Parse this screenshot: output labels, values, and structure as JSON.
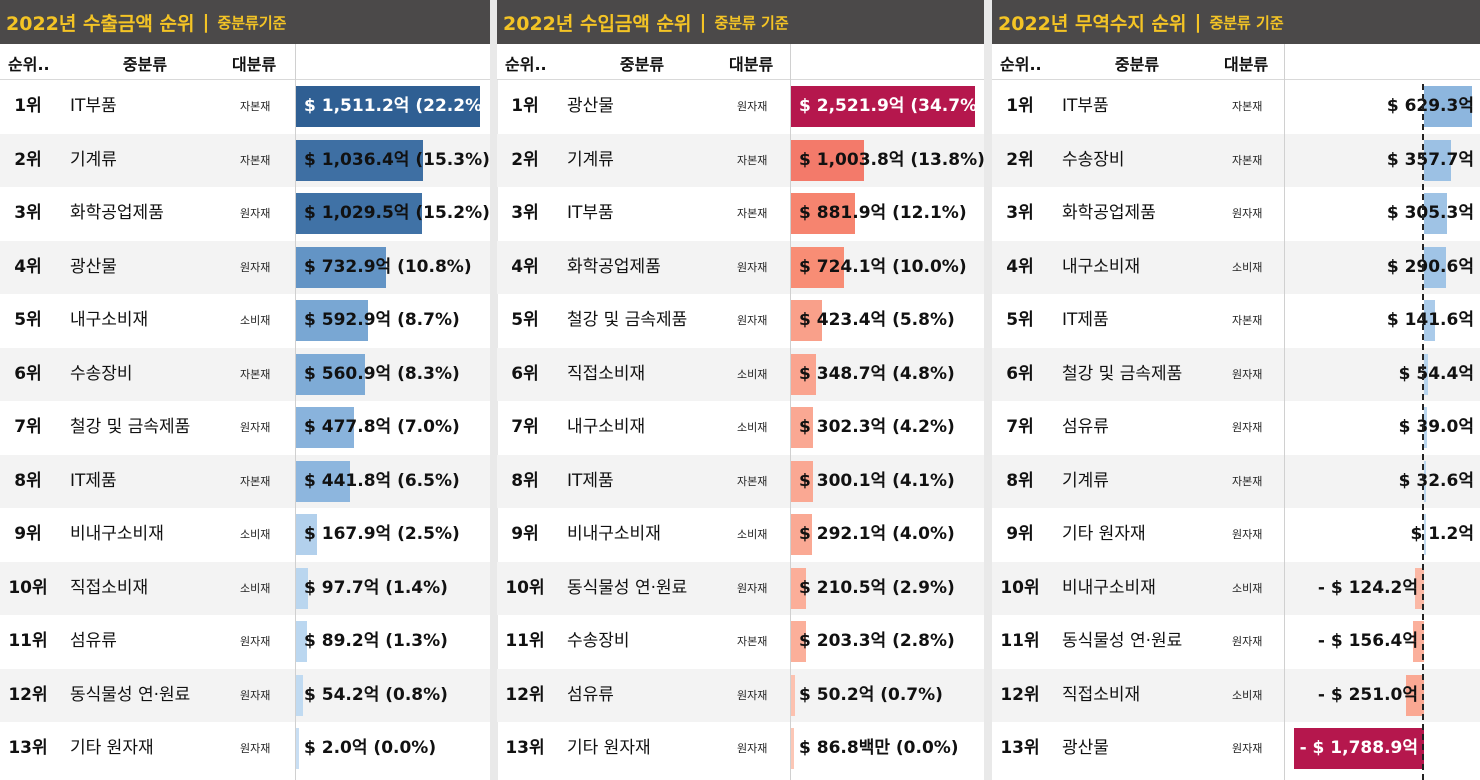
{
  "panels": [
    {
      "title": "2022년 수출금액 순위",
      "separator": "|",
      "subtitle": "중분류기준",
      "headers": {
        "rank": "순위..",
        "mid": "중분류",
        "big": "대분류"
      },
      "rows": [
        {
          "rank": "1위",
          "mid": "IT부품",
          "big": "자본재",
          "value": "$ 1,511.2억 (22.2%)",
          "share": 22.2,
          "color": "#2f5f93"
        },
        {
          "rank": "2위",
          "mid": "기계류",
          "big": "자본재",
          "value": "$ 1,036.4억 (15.3%)",
          "share": 15.3,
          "color": "#3e6fa3"
        },
        {
          "rank": "3위",
          "mid": "화학공업제품",
          "big": "원자재",
          "value": "$ 1,029.5억 (15.2%)",
          "share": 15.2,
          "color": "#4072a6"
        },
        {
          "rank": "4위",
          "mid": "광산물",
          "big": "원자재",
          "value": "$ 732.9억 (10.8%)",
          "share": 10.8,
          "color": "#6394c5"
        },
        {
          "rank": "5위",
          "mid": "내구소비재",
          "big": "소비재",
          "value": "$ 592.9억 (8.7%)",
          "share": 8.7,
          "color": "#79a7d3"
        },
        {
          "rank": "6위",
          "mid": "수송장비",
          "big": "자본재",
          "value": "$ 560.9억 (8.3%)",
          "share": 8.3,
          "color": "#7eabd6"
        },
        {
          "rank": "7위",
          "mid": "철강 및 금속제품",
          "big": "원자재",
          "value": "$ 477.8억 (7.0%)",
          "share": 7.0,
          "color": "#89b3dc"
        },
        {
          "rank": "8위",
          "mid": "IT제품",
          "big": "자본재",
          "value": "$ 441.8억 (6.5%)",
          "share": 6.5,
          "color": "#8db6de"
        },
        {
          "rank": "9위",
          "mid": "비내구소비재",
          "big": "소비재",
          "value": "$ 167.9억 (2.5%)",
          "share": 2.5,
          "color": "#b2d0ec"
        },
        {
          "rank": "10위",
          "mid": "직접소비재",
          "big": "소비재",
          "value": "$ 97.7억 (1.4%)",
          "share": 1.4,
          "color": "#bad6ef"
        },
        {
          "rank": "11위",
          "mid": "섬유류",
          "big": "원자재",
          "value": "$ 89.2억 (1.3%)",
          "share": 1.3,
          "color": "#bbd7f0"
        },
        {
          "rank": "12위",
          "mid": "동식물성 연·원료",
          "big": "원자재",
          "value": "$ 54.2억 (0.8%)",
          "share": 0.8,
          "color": "#c0daf1"
        },
        {
          "rank": "13위",
          "mid": "기타 원자재",
          "big": "원자재",
          "value": "$ 2.0억 (0.0%)",
          "share": 0.0,
          "color": "#c8def3"
        }
      ]
    },
    {
      "title": "2022년 수입금액 순위",
      "separator": "|",
      "subtitle": "중분류 기준",
      "headers": {
        "rank": "순위..",
        "mid": "중분류",
        "big": "대분류"
      },
      "rows": [
        {
          "rank": "1위",
          "mid": "광산물",
          "big": "원자재",
          "value": "$ 2,521.9억 (34.7%)",
          "share": 34.7,
          "color": "#b5174d"
        },
        {
          "rank": "2위",
          "mid": "기계류",
          "big": "자본재",
          "value": "$ 1,003.8억 (13.8%)",
          "share": 13.8,
          "color": "#f37a6a"
        },
        {
          "rank": "3위",
          "mid": "IT부품",
          "big": "자본재",
          "value": "$ 881.9억 (12.1%)",
          "share": 12.1,
          "color": "#f6846f"
        },
        {
          "rank": "4위",
          "mid": "화학공업제품",
          "big": "원자재",
          "value": "$ 724.1억 (10.0%)",
          "share": 10.0,
          "color": "#f88d75"
        },
        {
          "rank": "5위",
          "mid": "철강 및 금속제품",
          "big": "원자재",
          "value": "$ 423.4억 (5.8%)",
          "share": 5.8,
          "color": "#f9a08a"
        },
        {
          "rank": "6위",
          "mid": "직접소비재",
          "big": "소비재",
          "value": "$ 348.7억 (4.8%)",
          "share": 4.8,
          "color": "#faa48f"
        },
        {
          "rank": "7위",
          "mid": "내구소비재",
          "big": "소비재",
          "value": "$ 302.3억 (4.2%)",
          "share": 4.2,
          "color": "#faa893"
        },
        {
          "rank": "8위",
          "mid": "IT제품",
          "big": "자본재",
          "value": "$ 300.1억 (4.1%)",
          "share": 4.1,
          "color": "#faa893"
        },
        {
          "rank": "9위",
          "mid": "비내구소비재",
          "big": "소비재",
          "value": "$ 292.1억 (4.0%)",
          "share": 4.0,
          "color": "#faa994"
        },
        {
          "rank": "10위",
          "mid": "동식물성 연·원료",
          "big": "원자재",
          "value": "$ 210.5억 (2.9%)",
          "share": 2.9,
          "color": "#fbae99"
        },
        {
          "rank": "11위",
          "mid": "수송장비",
          "big": "자본재",
          "value": "$ 203.3억 (2.8%)",
          "share": 2.8,
          "color": "#fbaf9a"
        },
        {
          "rank": "12위",
          "mid": "섬유류",
          "big": "원자재",
          "value": "$ 50.2억 (0.7%)",
          "share": 0.7,
          "color": "#fcc1af"
        },
        {
          "rank": "13위",
          "mid": "기타 원자재",
          "big": "원자재",
          "value": "$ 86.8백만 (0.0%)",
          "share": 0.0,
          "color": "#fcc7b6"
        }
      ]
    },
    {
      "title": "2022년 무역수지 순위",
      "separator": "|",
      "subtitle": "중분류 기준",
      "headers": {
        "rank": "순위..",
        "mid": "중분류",
        "big": "대분류"
      },
      "rows": [
        {
          "rank": "1위",
          "mid": "IT부품",
          "big": "자본재",
          "value": "$ 629.3억",
          "amount": 629.3,
          "color": "#8db6de"
        },
        {
          "rank": "2위",
          "mid": "수송장비",
          "big": "자본재",
          "value": "$ 357.7억",
          "amount": 357.7,
          "color": "#9cc1e4"
        },
        {
          "rank": "3위",
          "mid": "화학공업제품",
          "big": "원자재",
          "value": "$ 305.3억",
          "amount": 305.3,
          "color": "#9fc3e5"
        },
        {
          "rank": "4위",
          "mid": "내구소비재",
          "big": "소비재",
          "value": "$ 290.6억",
          "amount": 290.6,
          "color": "#a0c4e6"
        },
        {
          "rank": "5위",
          "mid": "IT제품",
          "big": "자본재",
          "value": "$ 141.6억",
          "amount": 141.6,
          "color": "#aacbea"
        },
        {
          "rank": "6위",
          "mid": "철강 및 금속제품",
          "big": "원자재",
          "value": "$ 54.4억",
          "amount": 54.4,
          "color": "#b7d4ee"
        },
        {
          "rank": "7위",
          "mid": "섬유류",
          "big": "원자재",
          "value": "$ 39.0억",
          "amount": 39.0,
          "color": "#bad6ef"
        },
        {
          "rank": "8위",
          "mid": "기계류",
          "big": "자본재",
          "value": "$ 32.6억",
          "amount": 32.6,
          "color": "#bcd7f0"
        },
        {
          "rank": "9위",
          "mid": "기타 원자재",
          "big": "원자재",
          "value": "$ 1.2억",
          "amount": 1.2,
          "color": "#c4dcf2"
        },
        {
          "rank": "10위",
          "mid": "비내구소비재",
          "big": "소비재",
          "value": "- $ 124.2억",
          "amount": -124.2,
          "color": "#fbb8a5"
        },
        {
          "rank": "11위",
          "mid": "동식물성 연·원료",
          "big": "원자재",
          "value": "- $ 156.4억",
          "amount": -156.4,
          "color": "#fbb09c"
        },
        {
          "rank": "12위",
          "mid": "직접소비재",
          "big": "소비재",
          "value": "- $ 251.0억",
          "amount": -251.0,
          "color": "#faa893"
        },
        {
          "rank": "13위",
          "mid": "광산물",
          "big": "원자재",
          "value": "- $ 1,788.9억",
          "amount": -1788.9,
          "color": "#b5174d"
        }
      ]
    }
  ]
}
